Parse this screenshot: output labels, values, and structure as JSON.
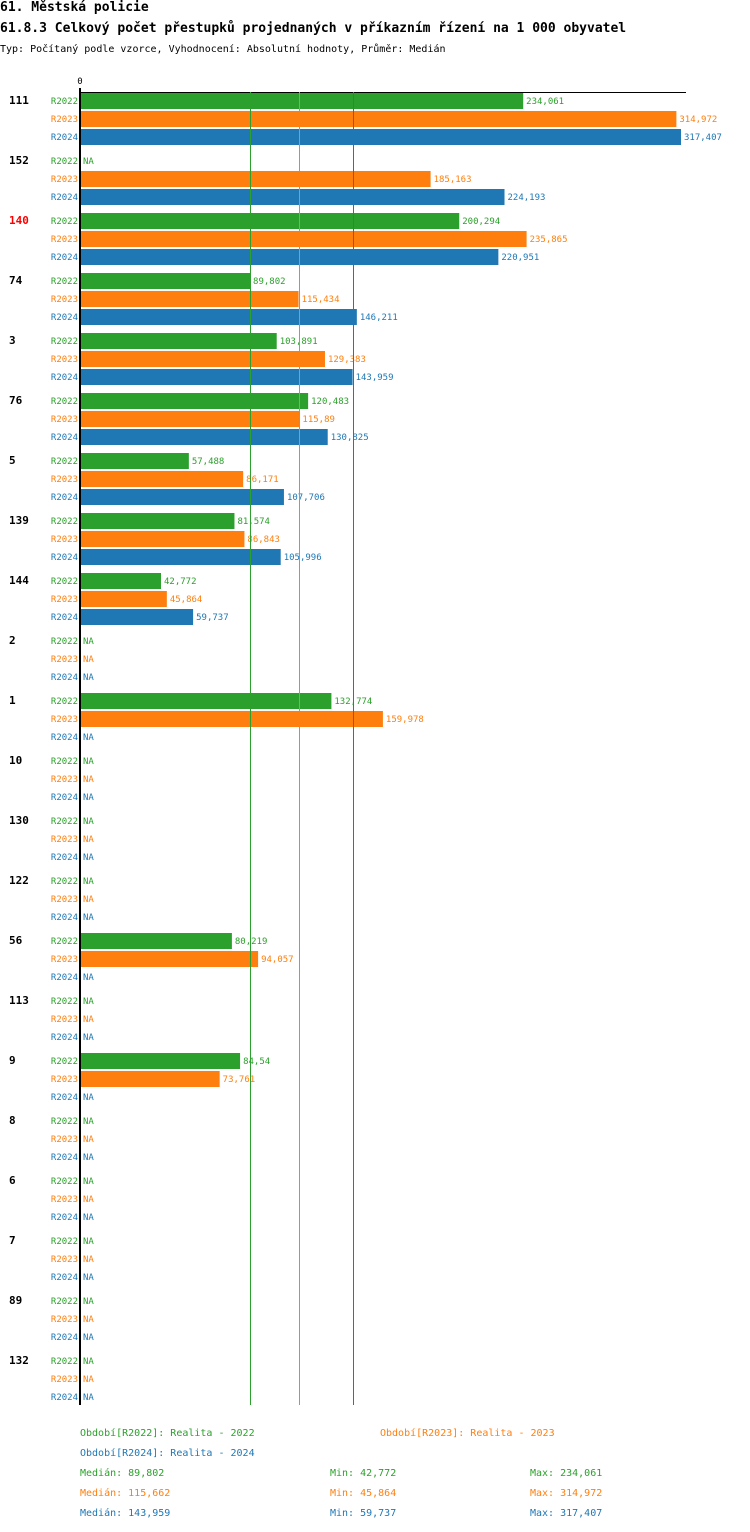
{
  "header": {
    "section": "61. Městská policie",
    "title": "61.8.3 Celkový počet přestupků projednaných v příkazním řízení na 1 000 obyvatel",
    "subtitle": "Typ: Počítaný podle vzorce, Vyhodnocení: Absolutní hodnoty, Průměr: Medián"
  },
  "chart_data": {
    "type": "bar",
    "orientation": "horizontal",
    "x_min": 0,
    "x_max": 317.407,
    "zero_label": "0",
    "na_label": "NA",
    "highlight_category": "140",
    "series": [
      {
        "name": "R2022",
        "color": "#2ca02c",
        "label": "Období[R2022]: Realita - 2022"
      },
      {
        "name": "R2023",
        "color": "#ff7f0e",
        "label": "Období[R2023]: Realita - 2023"
      },
      {
        "name": "R2024",
        "color": "#1f77b4",
        "label": "Období[R2024]: Realita - 2024"
      }
    ],
    "categories": [
      {
        "name": "111",
        "values": [
          234.061,
          314.972,
          317.407
        ],
        "labels": [
          "234,061",
          "314,972",
          "317,407"
        ]
      },
      {
        "name": "152",
        "values": [
          null,
          185.163,
          224.193
        ],
        "labels": [
          "NA",
          "185,163",
          "224,193"
        ]
      },
      {
        "name": "140",
        "values": [
          200.294,
          235.865,
          220.951
        ],
        "labels": [
          "200,294",
          "235,865",
          "220,951"
        ]
      },
      {
        "name": "74",
        "values": [
          89.802,
          115.434,
          146.211
        ],
        "labels": [
          "89,802",
          "115,434",
          "146,211"
        ]
      },
      {
        "name": "3",
        "values": [
          103.891,
          129.383,
          143.959
        ],
        "labels": [
          "103,891",
          "129,383",
          "143,959"
        ]
      },
      {
        "name": "76",
        "values": [
          120.483,
          115.89,
          130.825
        ],
        "labels": [
          "120,483",
          "115,89",
          "130,825"
        ]
      },
      {
        "name": "5",
        "values": [
          57.488,
          86.171,
          107.706
        ],
        "labels": [
          "57,488",
          "86,171",
          "107,706"
        ]
      },
      {
        "name": "139",
        "values": [
          81.574,
          86.843,
          105.996
        ],
        "labels": [
          "81,574",
          "86,843",
          "105,996"
        ]
      },
      {
        "name": "144",
        "values": [
          42.772,
          45.864,
          59.737
        ],
        "labels": [
          "42,772",
          "45,864",
          "59,737"
        ]
      },
      {
        "name": "2",
        "values": [
          null,
          null,
          null
        ],
        "labels": [
          "NA",
          "NA",
          "NA"
        ]
      },
      {
        "name": "1",
        "values": [
          132.774,
          159.978,
          null
        ],
        "labels": [
          "132,774",
          "159,978",
          "NA"
        ]
      },
      {
        "name": "10",
        "values": [
          null,
          null,
          null
        ],
        "labels": [
          "NA",
          "NA",
          "NA"
        ]
      },
      {
        "name": "130",
        "values": [
          null,
          null,
          null
        ],
        "labels": [
          "NA",
          "NA",
          "NA"
        ]
      },
      {
        "name": "122",
        "values": [
          null,
          null,
          null
        ],
        "labels": [
          "NA",
          "NA",
          "NA"
        ]
      },
      {
        "name": "56",
        "values": [
          80.219,
          94.057,
          null
        ],
        "labels": [
          "80,219",
          "94,057",
          "NA"
        ]
      },
      {
        "name": "113",
        "values": [
          null,
          null,
          null
        ],
        "labels": [
          "NA",
          "NA",
          "NA"
        ]
      },
      {
        "name": "9",
        "values": [
          84.54,
          73.761,
          null
        ],
        "labels": [
          "84,54",
          "73,761",
          "NA"
        ]
      },
      {
        "name": "8",
        "values": [
          null,
          null,
          null
        ],
        "labels": [
          "NA",
          "NA",
          "NA"
        ]
      },
      {
        "name": "6",
        "values": [
          null,
          null,
          null
        ],
        "labels": [
          "NA",
          "NA",
          "NA"
        ]
      },
      {
        "name": "7",
        "values": [
          null,
          null,
          null
        ],
        "labels": [
          "NA",
          "NA",
          "NA"
        ]
      },
      {
        "name": "89",
        "values": [
          null,
          null,
          null
        ],
        "labels": [
          "NA",
          "NA",
          "NA"
        ]
      },
      {
        "name": "132",
        "values": [
          null,
          null,
          null
        ],
        "labels": [
          "NA",
          "NA",
          "NA"
        ]
      }
    ],
    "reference_lines": [
      {
        "series": "R2022",
        "value": 89.802
      },
      {
        "series": "R2023",
        "value": 115.662
      },
      {
        "series": "R2024",
        "value": 143.959
      }
    ],
    "stats": [
      {
        "series": "R2022",
        "median": "Medián: 89,802",
        "min": "Min: 42,772",
        "max": "Max: 234,061"
      },
      {
        "series": "R2023",
        "median": "Medián: 115,662",
        "min": "Min: 45,864",
        "max": "Max: 314,972"
      },
      {
        "series": "R2024",
        "median": "Medián: 143,959",
        "min": "Min: 59,737",
        "max": "Max: 317,407"
      }
    ]
  }
}
